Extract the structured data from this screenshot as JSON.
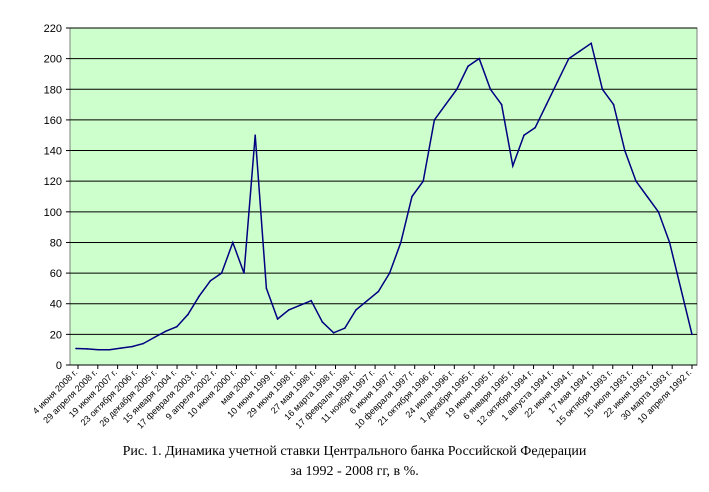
{
  "chart_data": {
    "type": "line",
    "title": "",
    "xlabel": "",
    "ylabel": "",
    "ylim": [
      0,
      220
    ],
    "y_ticks": [
      0,
      20,
      40,
      60,
      80,
      100,
      120,
      140,
      160,
      180,
      200,
      220
    ],
    "grid": "horizontal",
    "legend": "none",
    "plot_background": "#ccffcc",
    "line_color": "#000080",
    "x_order": "descending dates (2008 at left, 1992 at right)",
    "x_tick_labels": [
      "4 июня 2008 г.",
      "29 апреля 2008 г.",
      "19 июня 2007 г.",
      "23 октября 2006 г.",
      "26 декабря 2005 г.",
      "15 января 2004 г.",
      "17 февраля 2003 г.",
      "9 апреля 2002 г.",
      "10 июня 2000 г.",
      "мая 2000 г.",
      "10 июня 1999 г.",
      "29 июня 1998 г.",
      "27 мая 1998 г.",
      "16 марта 1998 г.",
      "17 февраля 1998 г.",
      "11 ноября 1997 г.",
      "6 июня 1997 г.",
      "10 февраля 1997 г.",
      "21 октября 1996 г.",
      "24 июля 1996 г.",
      "1 декабря 1995 г.",
      "19 июня 1995 г.",
      "6 января 1995 г.",
      "12 октября 1994 г.",
      "1 августа 1994 г.",
      "22 июня 1994 г.",
      "17 мая 1994 г.",
      "15 октября 1993 г.",
      "15 июля 1993 г.",
      "22 июня 1993 г.",
      "30 марта 1993 г.",
      "10 апреля 1992 г."
    ],
    "series": [
      {
        "values": [
          10.75,
          10.5,
          10,
          10,
          11,
          12,
          14,
          18,
          22,
          25,
          33,
          45,
          55,
          60,
          80,
          60,
          150,
          50,
          30,
          36,
          39,
          42,
          28,
          21,
          24,
          36,
          42,
          48,
          60,
          80,
          110,
          120,
          160,
          170,
          180,
          195,
          200,
          180,
          170,
          130,
          150,
          155,
          170,
          185,
          200,
          205,
          210,
          180,
          170,
          140,
          120,
          110,
          100,
          80,
          50,
          20
        ]
      }
    ]
  },
  "caption": {
    "line1": "Рис. 1.  Динамика учетной ставки Центрального банка Российской Федерации",
    "line2": "за 1992 - 2008 гг, в  %."
  }
}
